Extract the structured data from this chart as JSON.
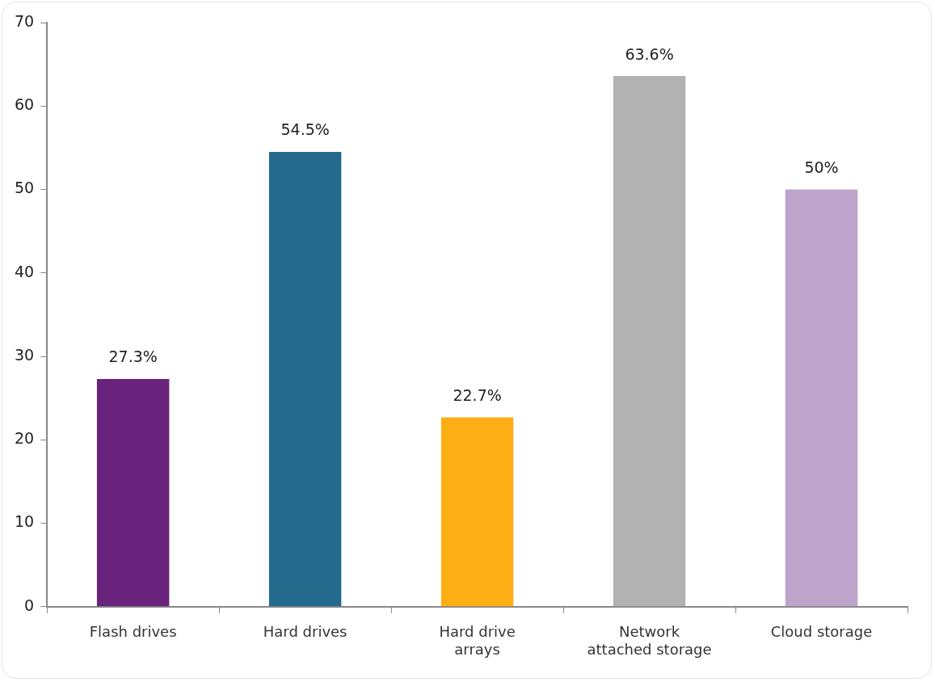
{
  "chart_data": {
    "type": "bar",
    "categories": [
      "Flash drives",
      "Hard drives",
      "Hard drive\narrays",
      "Network\nattached storage",
      "Cloud storage"
    ],
    "values": [
      27.3,
      54.5,
      22.7,
      63.6,
      50
    ],
    "colors": [
      "#6a237d",
      "#236a8c",
      "#fdae14",
      "#b2b2b2",
      "#bea3cb"
    ],
    "value_labels": [
      "27.3%",
      "54.5%",
      "22.7%",
      "63.6%",
      "50%"
    ],
    "ylim": [
      0,
      70
    ],
    "yticks": [
      0,
      10,
      20,
      30,
      40,
      50,
      60,
      70
    ],
    "grid": false,
    "legend": false
  }
}
